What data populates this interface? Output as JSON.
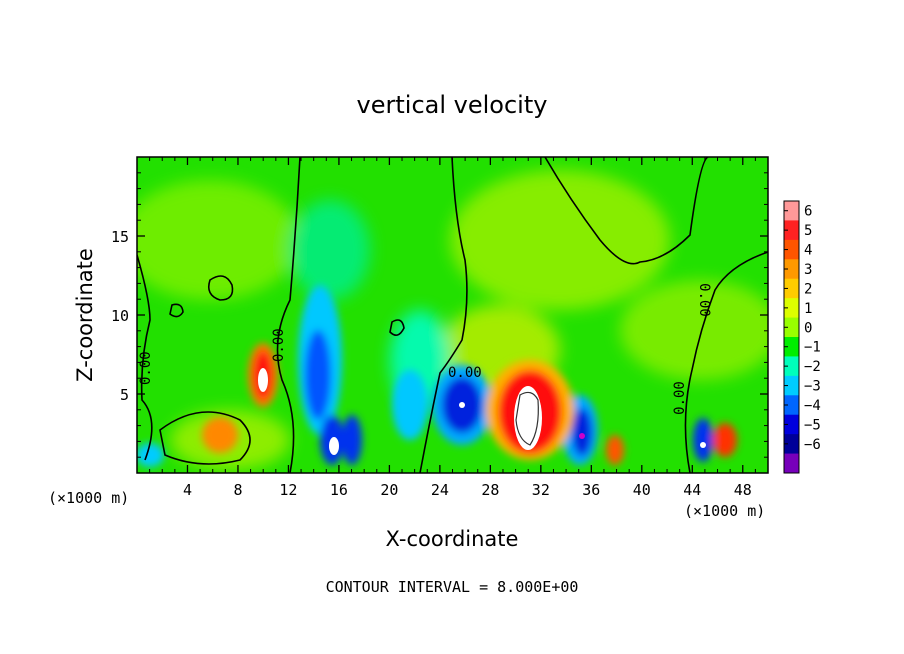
{
  "chart_data": {
    "type": "heatmap",
    "title": "vertical velocity",
    "xlabel": "X-coordinate",
    "ylabel": "Z-coordinate",
    "x_unit_left": "(×1000 m)",
    "x_unit_right": "(×1000 m)",
    "footer": "CONTOUR INTERVAL = 8.000E+00",
    "xlim": [
      0,
      50
    ],
    "ylim": [
      0,
      20
    ],
    "x_ticks": [
      "4",
      "8",
      "12",
      "16",
      "20",
      "24",
      "28",
      "32",
      "36",
      "40",
      "44",
      "48"
    ],
    "y_ticks": [
      "5",
      "10",
      "15"
    ],
    "x_tick_values": [
      4,
      8,
      12,
      16,
      20,
      24,
      28,
      32,
      36,
      40,
      44,
      48
    ],
    "y_tick_values": [
      5,
      10,
      15
    ],
    "colorbar": {
      "labels": [
        "6",
        "5",
        "4",
        "3",
        "2",
        "1",
        "0",
        "−1",
        "−2",
        "−3",
        "−4",
        "−5",
        "−6"
      ],
      "values": [
        6,
        5,
        4,
        3,
        2,
        1,
        0,
        -1,
        -2,
        -3,
        -4,
        -5,
        -6
      ],
      "colors": [
        "#ff9999",
        "#ff2222",
        "#ff5500",
        "#ff9900",
        "#ffcc00",
        "#ddff00",
        "#99ff00",
        "#00ee00",
        "#00ffbb",
        "#00ccff",
        "#0066ff",
        "#0000dd",
        "#000099",
        "#7700bb"
      ]
    },
    "contour_labels": [
      "0.00",
      "0.00",
      "0.00",
      "0.00",
      "0.00",
      "0.00"
    ],
    "features": [
      {
        "kind": "updraft",
        "x": 10,
        "z": 6.5,
        "w": 5
      },
      {
        "kind": "updraft",
        "x": 30.5,
        "z": 4,
        "w": 6
      },
      {
        "kind": "updraft",
        "x": 6.5,
        "z": 2.5,
        "w": 3
      },
      {
        "kind": "updraft",
        "x": 46.5,
        "z": 2,
        "w": 4
      },
      {
        "kind": "updraft",
        "x": 38,
        "z": 1.5,
        "w": 3
      },
      {
        "kind": "downdraft",
        "x": 14.5,
        "z": 6.5,
        "w": -4
      },
      {
        "kind": "downdraft",
        "x": 15.5,
        "z": 2,
        "w": -6
      },
      {
        "kind": "downdraft",
        "x": 25.8,
        "z": 4.5,
        "w": -5
      },
      {
        "kind": "downdraft",
        "x": 35,
        "z": 2.5,
        "w": -5
      },
      {
        "kind": "downdraft",
        "x": 44.5,
        "z": 2,
        "w": -5
      },
      {
        "kind": "downdraft",
        "x": 17.5,
        "z": 2,
        "w": -4
      }
    ]
  }
}
